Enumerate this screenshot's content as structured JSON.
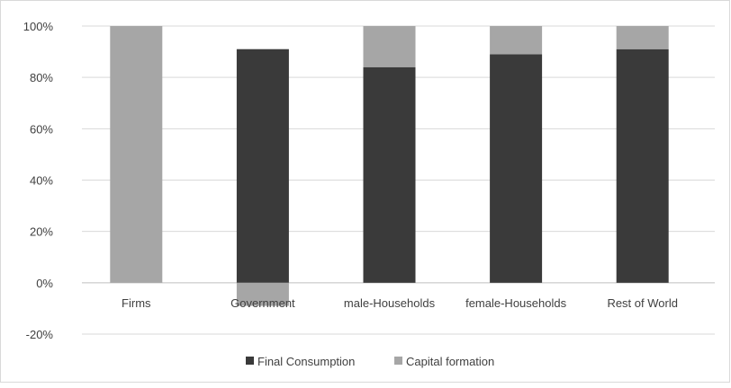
{
  "chart_data": {
    "type": "bar",
    "stacked": true,
    "title": "",
    "xlabel": "",
    "ylabel": "",
    "categories": [
      "Firms",
      "Government",
      "male-Households",
      "female-Households",
      "Rest of World"
    ],
    "series": [
      {
        "name": "Final Consumption",
        "color": "#3a3a3a",
        "values": [
          0,
          91,
          84,
          89,
          91
        ]
      },
      {
        "name": "Capital formation",
        "color": "#a6a6a6",
        "values": [
          100,
          -9,
          16,
          11,
          9
        ]
      }
    ],
    "ylim": [
      -20,
      100
    ],
    "yticks": [
      -20,
      0,
      20,
      40,
      60,
      80,
      100
    ],
    "ytick_labels": [
      "-20%",
      "0%",
      "20%",
      "40%",
      "60%",
      "80%",
      "100%"
    ],
    "grid": true,
    "legend_position": "bottom"
  }
}
